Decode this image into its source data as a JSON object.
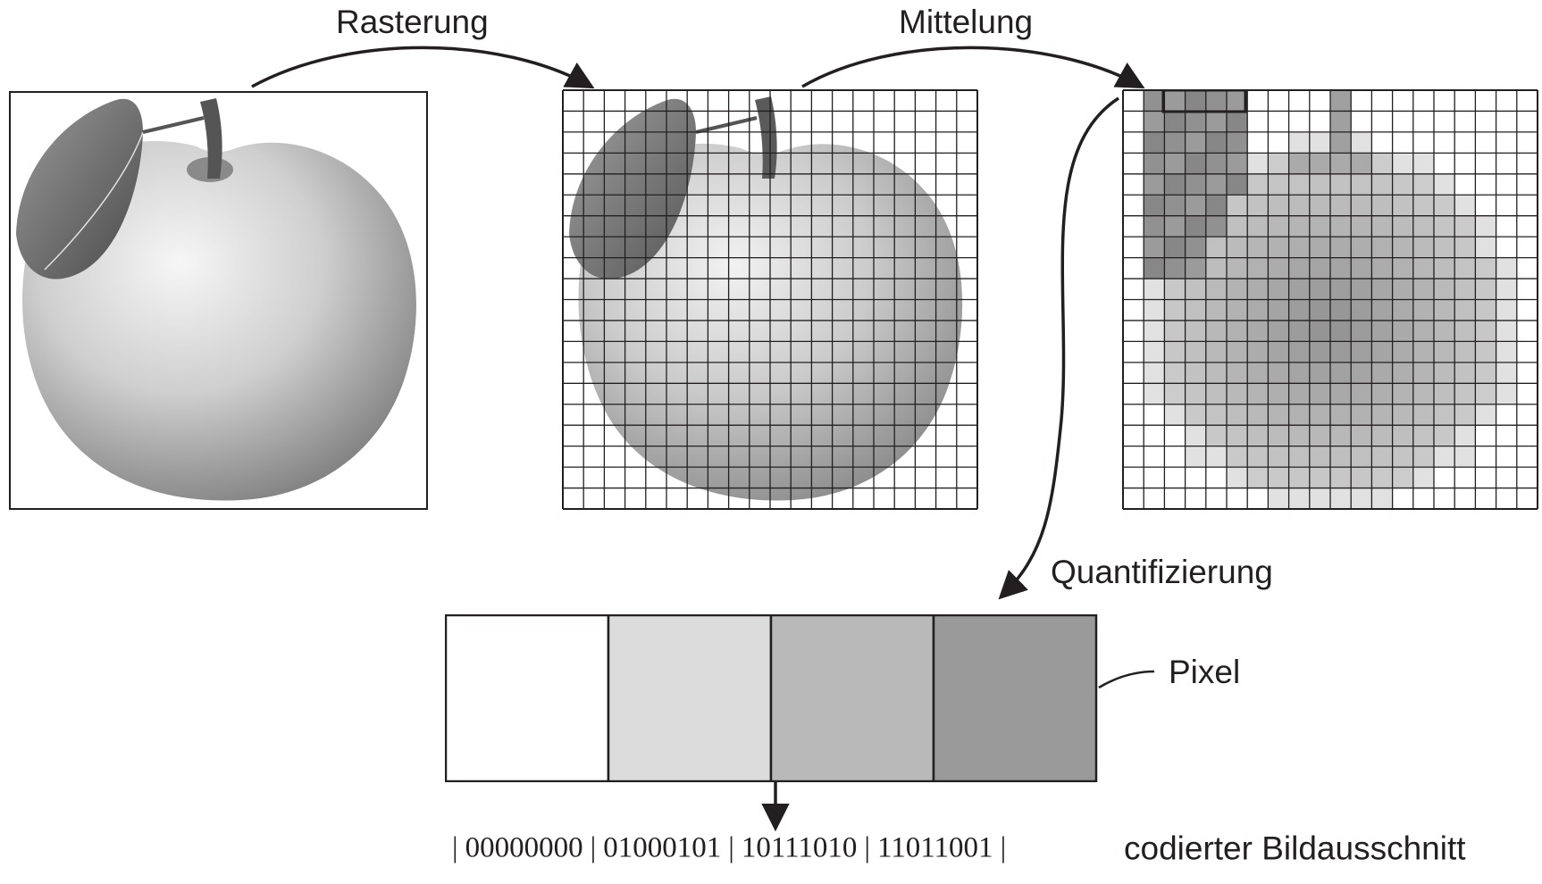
{
  "labels": {
    "rasterung": "Rasterung",
    "mittelung": "Mittelung",
    "quantifizierung": "Quantifizierung",
    "pixel": "Pixel",
    "codierter": "codierter Bildausschnitt"
  },
  "pixels": [
    {
      "code": "00000000",
      "gray": "#ffffff"
    },
    {
      "code": "01000101",
      "gray": "#dcdcdc"
    },
    {
      "code": "10111010",
      "gray": "#b9b9b9"
    },
    {
      "code": "11011001",
      "gray": "#9a9a9a"
    }
  ],
  "grid": {
    "cols": 20,
    "rows": 20
  }
}
